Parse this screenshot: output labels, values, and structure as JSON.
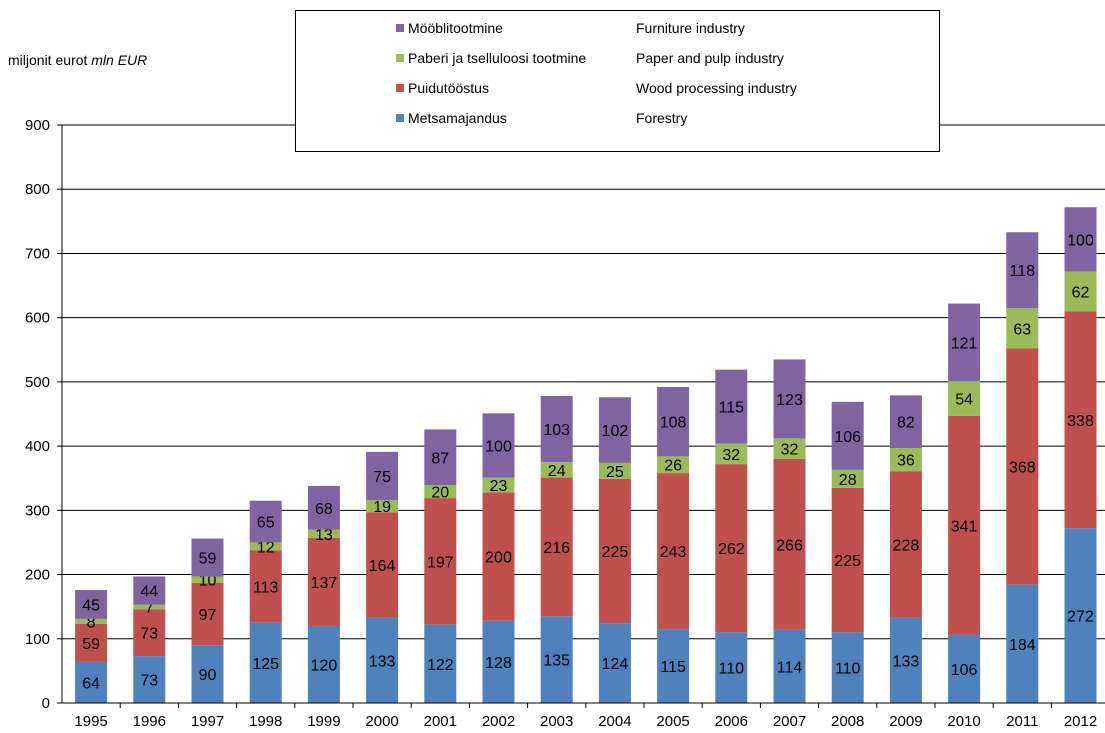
{
  "unit_label": {
    "et": "miljonit eurot",
    "en": "mln EUR"
  },
  "colors": {
    "forestry": "#4f81bd",
    "wood_processing": "#c0504d",
    "paper_pulp": "#9bbb59",
    "furniture": "#8064a2"
  },
  "chart_data": {
    "type": "bar",
    "stacked": true,
    "categories": [
      "1995",
      "1996",
      "1997",
      "1998",
      "1999",
      "2000",
      "2001",
      "2002",
      "2003",
      "2004",
      "2005",
      "2006",
      "2007",
      "2008",
      "2009",
      "2010",
      "2011",
      "2012"
    ],
    "ylim": [
      0,
      900
    ],
    "yticks": [
      0,
      100,
      200,
      300,
      400,
      500,
      600,
      700,
      800,
      900
    ],
    "grid": true,
    "legend_position": "top-center",
    "series": [
      {
        "name": "Metsamajandus",
        "name_en": "Forestry",
        "color": "#4f81bd",
        "values": [
          64,
          73,
          90,
          125,
          120,
          133,
          122,
          128,
          135,
          124,
          115,
          110,
          114,
          110,
          133,
          106,
          184,
          272
        ]
      },
      {
        "name": "Puidutööstus",
        "name_en": "Wood processing industry",
        "color": "#c0504d",
        "values": [
          59,
          73,
          97,
          113,
          137,
          164,
          197,
          200,
          216,
          225,
          243,
          262,
          266,
          225,
          228,
          341,
          368,
          338
        ]
      },
      {
        "name": "Paberi ja tselluloosi tootmine",
        "name_en": "Paper and pulp industry",
        "color": "#9bbb59",
        "values": [
          8,
          7,
          10,
          12,
          13,
          19,
          20,
          23,
          24,
          25,
          26,
          32,
          32,
          28,
          36,
          54,
          63,
          62
        ]
      },
      {
        "name": "Mööblitootmine",
        "name_en": "Furniture industry",
        "color": "#8064a2",
        "values": [
          45,
          44,
          59,
          65,
          68,
          75,
          87,
          100,
          103,
          102,
          108,
          115,
          123,
          106,
          82,
          121,
          118,
          100
        ]
      }
    ]
  }
}
